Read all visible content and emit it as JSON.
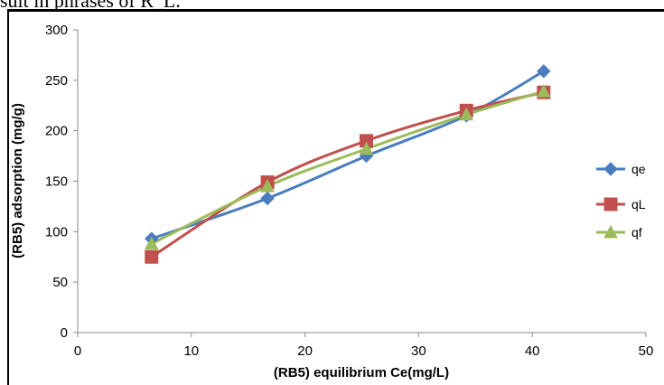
{
  "page": {
    "top_text": "sult in phrases of R_L."
  },
  "chart_data": {
    "type": "line",
    "title": "",
    "xlabel": "(RB5) equilibrium Ce(mg/L)",
    "ylabel": "(RB5) adsorption (mg/g)",
    "xlim": [
      0,
      50
    ],
    "ylim": [
      0,
      300
    ],
    "xticks": [
      0,
      10,
      20,
      30,
      40,
      50
    ],
    "yticks": [
      0,
      50,
      100,
      150,
      200,
      250,
      300
    ],
    "grid": false,
    "legend_position": "right",
    "series": [
      {
        "name": "qe",
        "color": "#4a7cc0",
        "marker": "diamond",
        "points": [
          [
            6.5,
            93
          ],
          [
            16.7,
            133
          ],
          [
            25.4,
            175
          ],
          [
            34.2,
            215
          ],
          [
            41.0,
            259
          ]
        ]
      },
      {
        "name": "qL",
        "color": "#c0504d",
        "marker": "square",
        "points": [
          [
            6.5,
            75
          ],
          [
            16.7,
            149
          ],
          [
            25.4,
            190
          ],
          [
            34.2,
            220
          ],
          [
            41.0,
            238
          ]
        ]
      },
      {
        "name": "qf",
        "color": "#9bbb59",
        "marker": "triangle",
        "points": [
          [
            6.5,
            88
          ],
          [
            16.7,
            145
          ],
          [
            25.4,
            182
          ],
          [
            34.2,
            216
          ],
          [
            41.0,
            239
          ]
        ]
      }
    ]
  }
}
